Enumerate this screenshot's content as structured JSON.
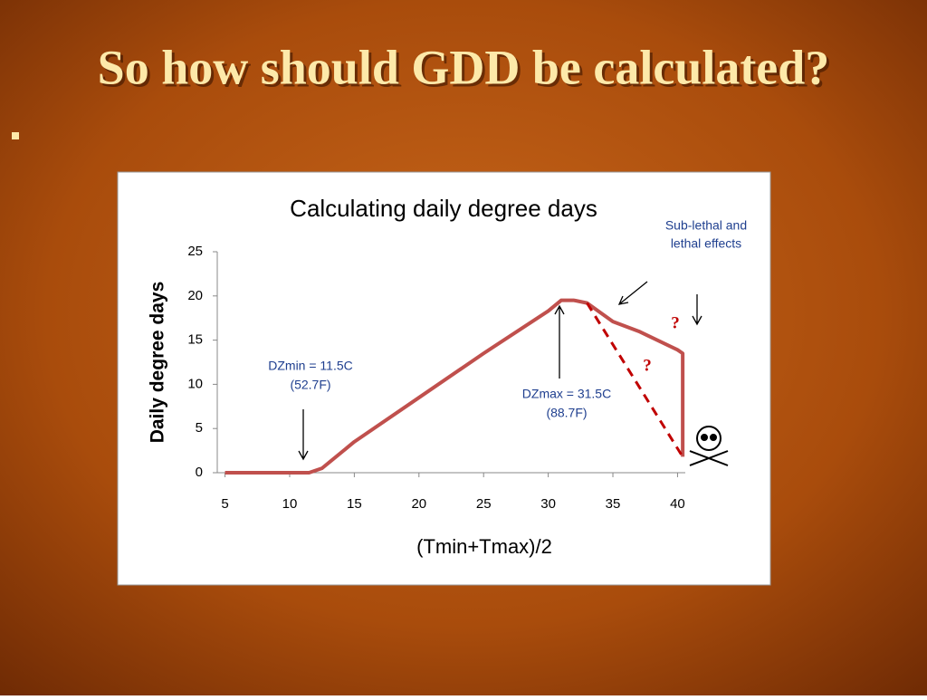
{
  "slide": {
    "title": "So how should GDD be calculated?"
  },
  "chart_data": {
    "type": "line",
    "title": "Calculating daily degree days",
    "x_label": "(Tmin+Tmax)/2",
    "y_label": "Daily degree days",
    "xlim": [
      4.4,
      40.6
    ],
    "xticks": [
      5,
      10,
      15,
      20,
      25,
      30,
      35,
      40
    ],
    "ylim": [
      0,
      25
    ],
    "yticks": [
      0,
      5,
      10,
      15,
      20,
      25
    ],
    "series": [
      {
        "color": "#c0504d",
        "dash": false,
        "x": [
          5,
          11.5,
          12.5,
          15,
          20,
          25,
          30,
          31,
          32,
          33,
          35,
          37,
          40,
          40.4,
          40.4
        ],
        "values": [
          0,
          0,
          0.5,
          3.5,
          8.5,
          13.5,
          18.3,
          19.5,
          19.5,
          19.2,
          17.1,
          16,
          13.9,
          13.5,
          1.8
        ]
      },
      {
        "color": "#c00000",
        "dash": true,
        "x": [
          33,
          40.4
        ],
        "values": [
          19.2,
          1.8
        ]
      }
    ],
    "annotations": [
      "DZmin = 11.5C",
      "(52.7F)",
      "DZmax = 31.5C",
      "(88.7F)",
      "Sub-lethal and",
      "lethal effects",
      "?",
      "?"
    ]
  }
}
